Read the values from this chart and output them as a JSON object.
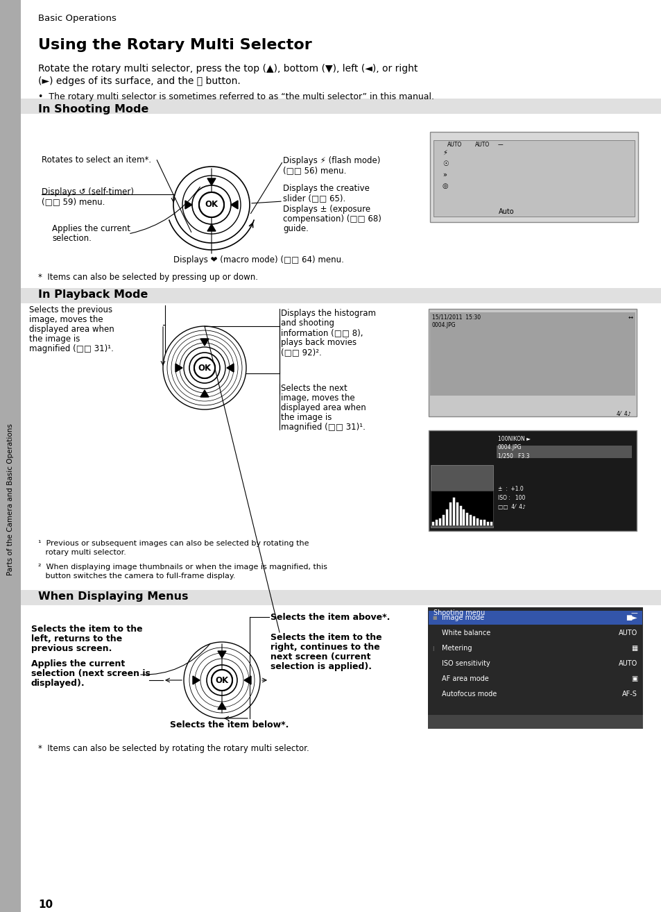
{
  "page_bg": "#ffffff",
  "sidebar_bg": "#aaaaaa",
  "title_header": "Basic Operations",
  "main_title": "Using the Rotary Multi Selector",
  "intro_line1": "Rotate the rotary multi selector, press the top (▲), bottom (▼), left (◄), or right",
  "intro_line2": "(►) edges of its surface, and the ⒪ button.",
  "bullet1": "•  The rotary multi selector is sometimes referred to as “the multi selector” in this manual.",
  "section1": "In Shooting Mode",
  "section2": "In Playback Mode",
  "section3": "When Displaying Menus",
  "shoot_rotates": "Rotates to select an item*.",
  "shoot_self_timer_1": "Displays ↺ (self-timer)",
  "shoot_self_timer_2": "(□□ 59) menu.",
  "shoot_applies_1": "Applies the current",
  "shoot_applies_2": "selection.",
  "shoot_macro": "Displays ❤ (macro mode) (□□ 64) menu.",
  "shoot_flash_1": "Displays ⚡ (flash mode)",
  "shoot_flash_2": "(□□ 56) menu.",
  "shoot_creative_1": "Displays the creative",
  "shoot_creative_2": "slider (□□ 65).",
  "shoot_exposure_1": "Displays ± (exposure",
  "shoot_exposure_2": "compensation) (□□ 68)",
  "shoot_exposure_3": "guide.",
  "footnote_shoot": "*  Items can also be selected by pressing up or down.",
  "play_prev_1": "Selects the previous",
  "play_prev_2": "image, moves the",
  "play_prev_3": "displayed area when",
  "play_prev_4": "the image is",
  "play_prev_5": "magnified (□□ 31)¹.",
  "play_hist_1": "Displays the histogram",
  "play_hist_2": "and shooting",
  "play_hist_3": "information (□□ 8),",
  "play_hist_4": "plays back movies",
  "play_hist_5": "(□□ 92)².",
  "play_next_1": "Selects the next",
  "play_next_2": "image, moves the",
  "play_next_3": "displayed area when",
  "play_next_4": "the image is",
  "play_next_5": "magnified (□□ 31)¹.",
  "footnote1_1": "¹  Previous or subsequent images can also be selected by rotating the",
  "footnote1_2": "   rotary multi selector.",
  "footnote2_1": "²  When displaying image thumbnails or when the image is magnified, this",
  "footnote2_2": "   button switches the camera to full-frame display.",
  "menu_above": "Selects the item above*.",
  "menu_left_1": "Selects the item to the",
  "menu_left_2": "left, returns to the",
  "menu_left_3": "previous screen.",
  "menu_applies_1": "Applies the current",
  "menu_applies_2": "selection (next screen is",
  "menu_applies_3": "displayed).",
  "menu_below": "Selects the item below*.",
  "menu_right_1": "Selects the item to the",
  "menu_right_2": "right, continues to the",
  "menu_right_3": "next screen (current",
  "menu_right_4": "selection is applied).",
  "footnote_menu": "*  Items can also be selected by rotating the rotary multi selector.",
  "page_num": "10",
  "sidebar_text": "Parts of the Camera and Basic Operations"
}
